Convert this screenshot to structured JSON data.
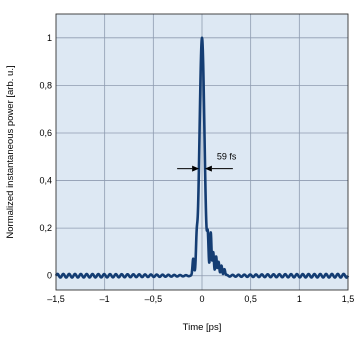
{
  "chart_data": {
    "type": "line",
    "title": "",
    "xlabel": "Time [ps]",
    "ylabel": "Normalized instantaneous power [arb. u.]",
    "xlim": [
      -1.5,
      1.5
    ],
    "ylim": [
      -0.06,
      1.1
    ],
    "x_ticks": [
      -1.5,
      -1,
      -0.5,
      0,
      0.5,
      1,
      1.5
    ],
    "x_tick_labels": [
      "–1,5",
      "–1",
      "–0,5",
      "0",
      "0,5",
      "1",
      "1,5"
    ],
    "y_ticks": [
      0,
      0.2,
      0.4,
      0.6,
      0.8,
      1
    ],
    "y_tick_labels": [
      "0",
      "0,2",
      "0,4",
      "0,6",
      "0,8",
      "1"
    ],
    "grid": true,
    "background_color": "#dde8f3",
    "grid_color": "#8e9bb0",
    "line_color": "#143d73",
    "annotation": {
      "text": "59 fs",
      "x_left": -0.0295,
      "x_right": 0.0295,
      "y": 0.45
    },
    "series": [
      {
        "pulse_center": 0.0,
        "pulse_fwhm": 0.059,
        "satellite_peaks": [
          {
            "x": -0.09,
            "y": 0.07
          },
          {
            "x": -0.055,
            "y": 0.1
          },
          {
            "x": 0.06,
            "y": 0.13
          },
          {
            "x": 0.09,
            "y": 0.18
          },
          {
            "x": 0.115,
            "y": 0.1
          },
          {
            "x": 0.145,
            "y": 0.08
          },
          {
            "x": 0.17,
            "y": 0.06
          },
          {
            "x": 0.2,
            "y": 0.04
          },
          {
            "x": 0.23,
            "y": 0.03
          }
        ],
        "baseline_ripple_amplitude": 0.008
      }
    ]
  }
}
